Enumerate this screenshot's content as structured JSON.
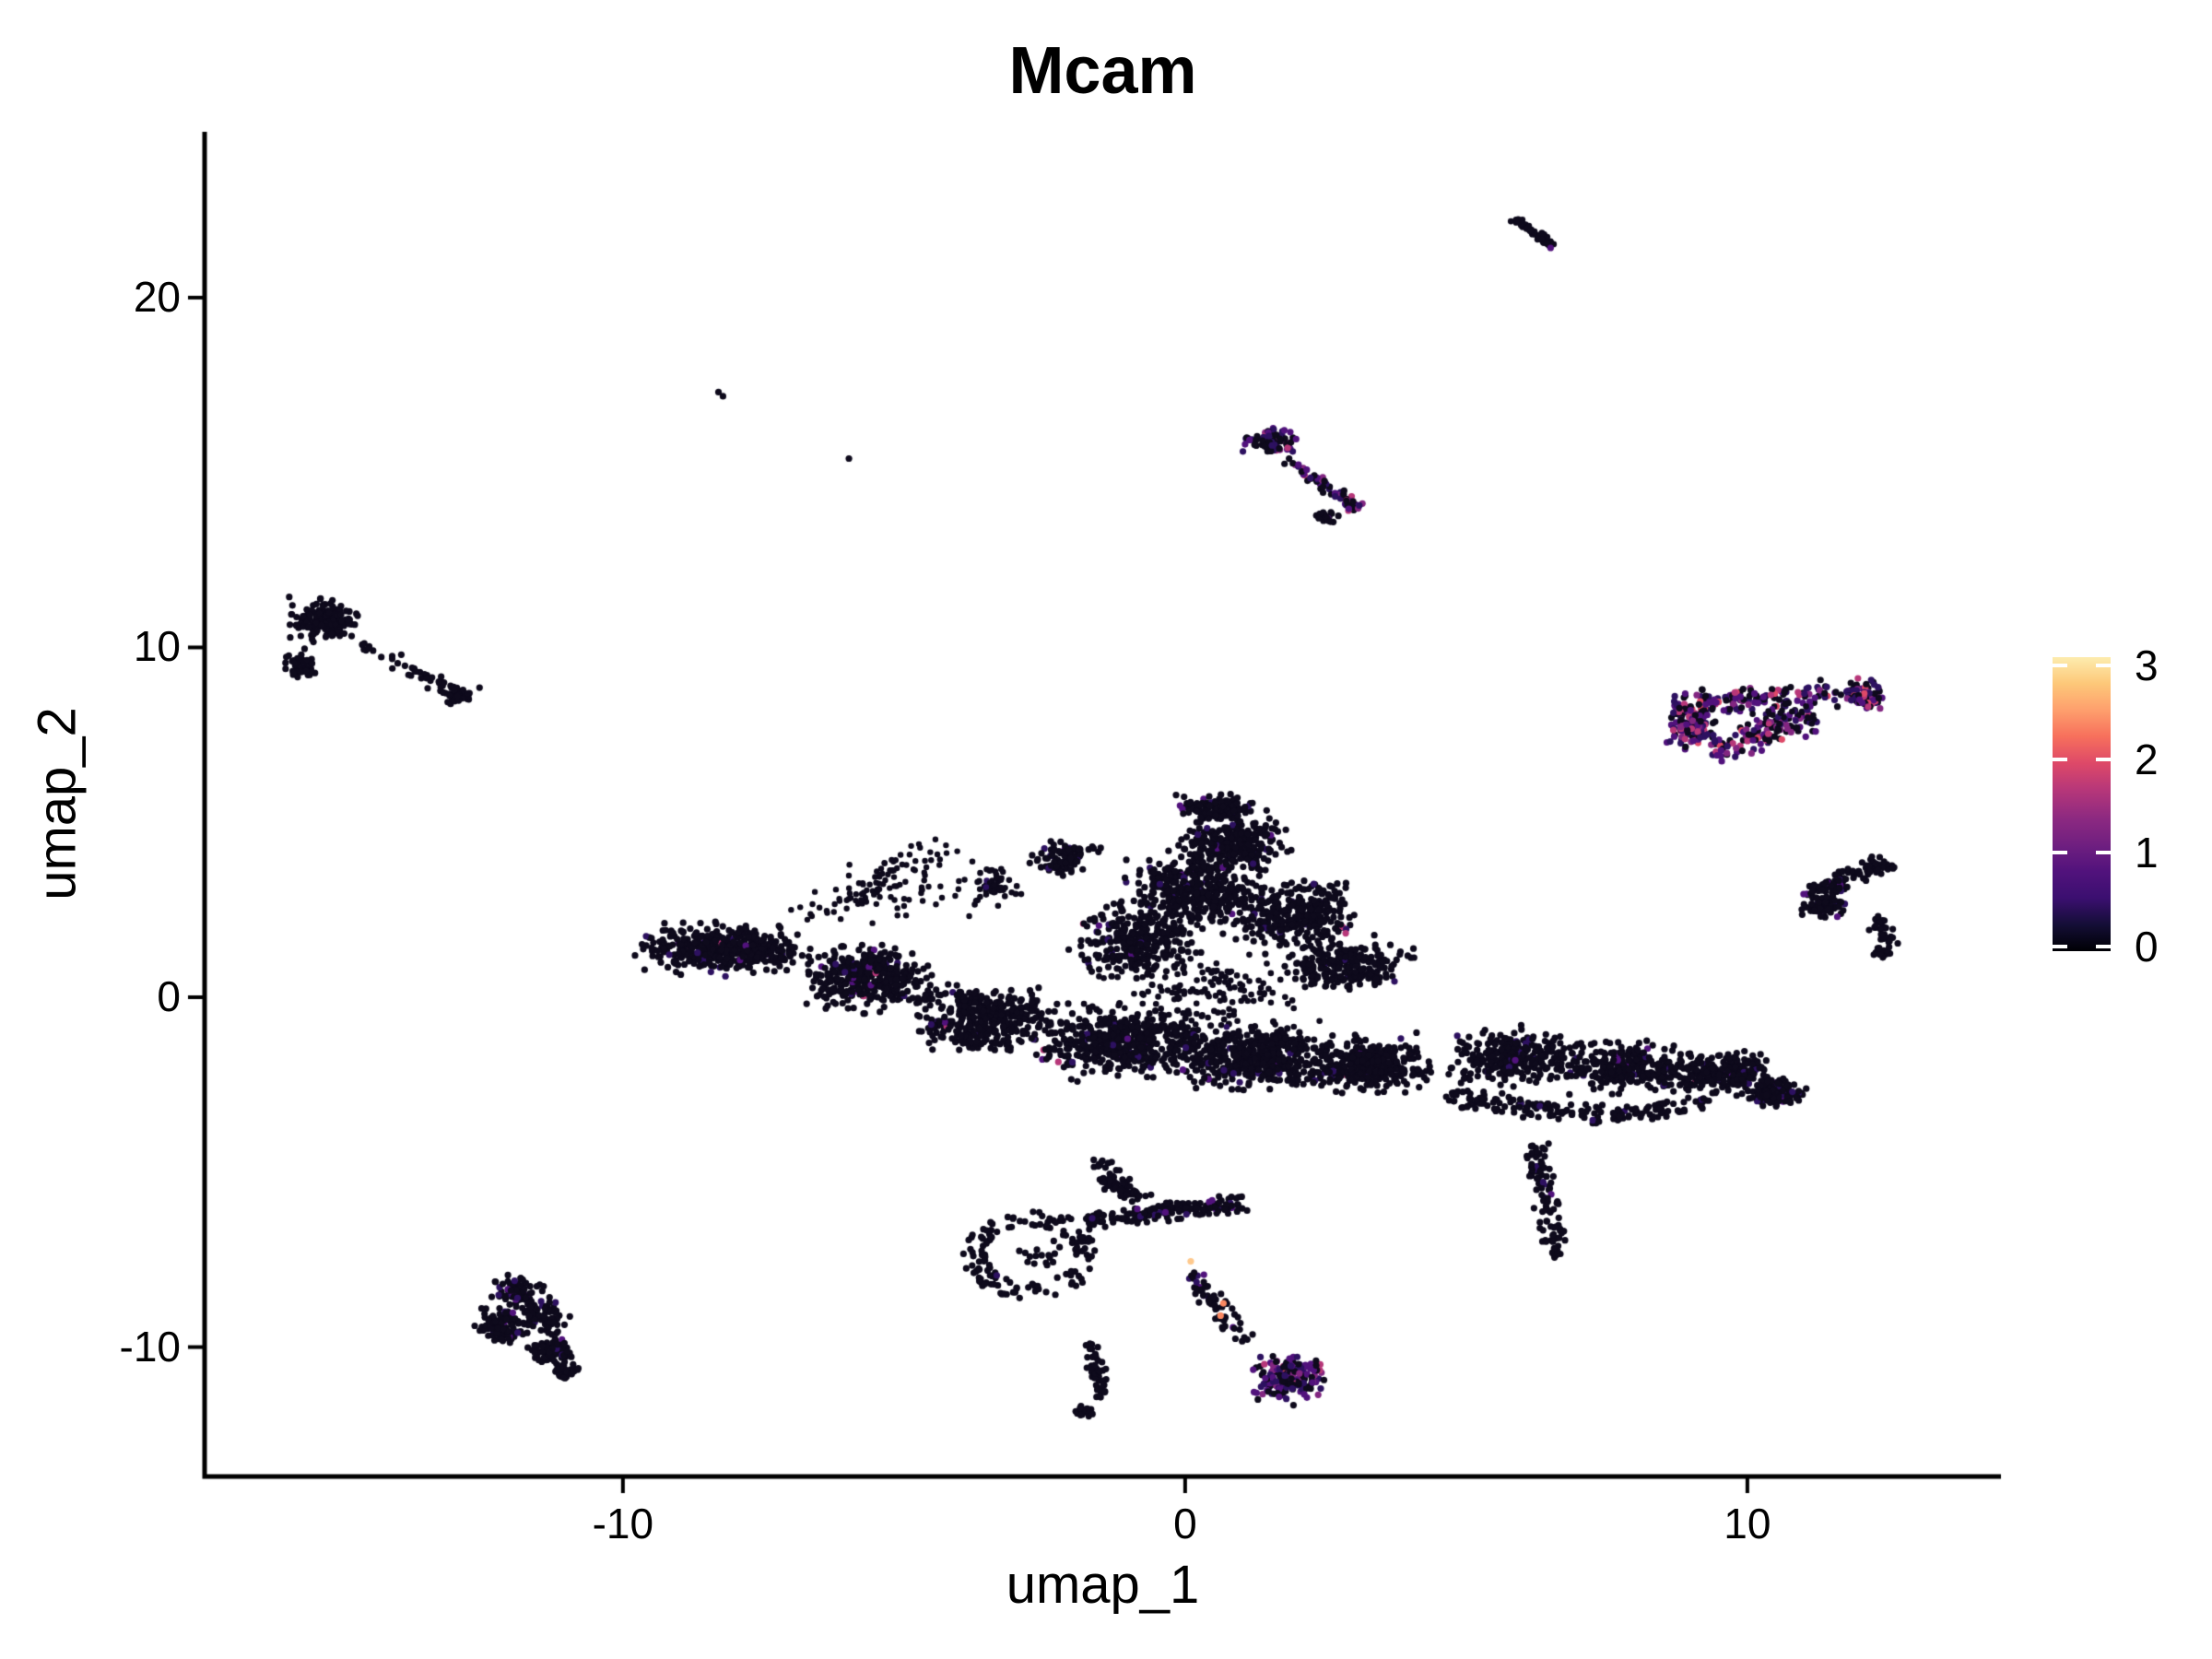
{
  "chart_data": {
    "type": "scatter",
    "title": "Mcam",
    "xlabel": "umap_1",
    "ylabel": "umap_2",
    "grid": false,
    "background": "#ffffff",
    "axis_color": "#000000",
    "xlim": [
      -17.44,
      14.51
    ],
    "ylim": [
      -13.7,
      24.74
    ],
    "x_ticks": [
      {
        "label": "-10",
        "value": -10
      },
      {
        "label": "0",
        "value": 0
      },
      {
        "label": "10",
        "value": 10
      }
    ],
    "y_ticks": [
      {
        "label": "20",
        "value": 20
      },
      {
        "label": "10",
        "value": 10
      },
      {
        "label": "0",
        "value": 0
      },
      {
        "label": "-10",
        "value": -10
      }
    ],
    "legend": {
      "position": "right",
      "range": [
        0,
        3
      ],
      "ticks": [
        {
          "label": "3",
          "value": 3
        },
        {
          "label": "2",
          "value": 2
        },
        {
          "label": "1",
          "value": 1
        },
        {
          "label": "0",
          "value": 0
        }
      ],
      "gradient_stops": [
        "#000004",
        "#140e36",
        "#3b0f70",
        "#51127c",
        "#6f1f80",
        "#8c2981",
        "#b73779",
        "#de4968",
        "#f7705c",
        "#fe9f6d",
        "#fdc879",
        "#fdecae"
      ]
    },
    "point_palette": [
      "#0e0a1c",
      "#2d1160",
      "#51127c",
      "#822681",
      "#b73779",
      "#de4968",
      "#fb8861",
      "#fec98d"
    ],
    "mixes": {
      "pureblack": [
        [
          0,
          1
        ]
      ],
      "black": [
        [
          0,
          958
        ],
        [
          1,
          28
        ],
        [
          2,
          10
        ],
        [
          4,
          4
        ]
      ],
      "blackp": [
        [
          0,
          92
        ],
        [
          1,
          5
        ],
        [
          2,
          3
        ]
      ],
      "tri": [
        [
          0,
          38
        ],
        [
          1,
          20
        ],
        [
          2,
          20
        ],
        [
          3,
          12
        ],
        [
          4,
          7
        ],
        [
          5,
          3
        ]
      ],
      "hot": [
        [
          0,
          45
        ],
        [
          1,
          22
        ],
        [
          2,
          18
        ],
        [
          3,
          8
        ],
        [
          4,
          5
        ],
        [
          5,
          2
        ]
      ]
    },
    "clusters": [
      {
        "type": "blob",
        "cx": -8.2,
        "cy": 1.4,
        "rx": 1.85,
        "ry": 0.9,
        "n": 480,
        "mix": "black"
      },
      {
        "type": "blob",
        "cx": -5.7,
        "cy": 0.55,
        "rx": 1.6,
        "ry": 1.25,
        "n": 380,
        "mix": "black"
      },
      {
        "type": "blob",
        "cx": -3.5,
        "cy": -0.6,
        "rx": 1.6,
        "ry": 1.2,
        "n": 400,
        "mix": "black"
      },
      {
        "type": "blob",
        "cx": -1.2,
        "cy": -1.3,
        "rx": 1.9,
        "ry": 1.25,
        "n": 480,
        "mix": "black"
      },
      {
        "type": "blob",
        "cx": 1.2,
        "cy": -1.7,
        "rx": 1.9,
        "ry": 1.15,
        "n": 480,
        "mix": "black"
      },
      {
        "type": "blob",
        "cx": 3.3,
        "cy": -1.9,
        "rx": 1.5,
        "ry": 1.0,
        "n": 340,
        "mix": "black"
      },
      {
        "type": "blob",
        "cx": 0.2,
        "cy": 3.1,
        "rx": 1.5,
        "ry": 1.5,
        "n": 400,
        "mix": "black"
      },
      {
        "type": "blob",
        "cx": 0.9,
        "cy": 4.4,
        "rx": 1.15,
        "ry": 0.95,
        "n": 260,
        "mix": "black"
      },
      {
        "type": "blob",
        "cx": 0.6,
        "cy": 5.4,
        "rx": 0.95,
        "ry": 0.5,
        "n": 130,
        "mix": "black"
      },
      {
        "type": "blob",
        "cx": -0.8,
        "cy": 1.6,
        "rx": 1.4,
        "ry": 1.3,
        "n": 300,
        "mix": "black"
      },
      {
        "type": "blob",
        "cx": 1.9,
        "cy": 2.4,
        "rx": 1.5,
        "ry": 1.3,
        "n": 320,
        "mix": "black"
      },
      {
        "type": "blob",
        "cx": 2.9,
        "cy": 0.9,
        "rx": 1.4,
        "ry": 1.0,
        "n": 240,
        "mix": "black"
      },
      {
        "type": "blob",
        "cx": 0.3,
        "cy": 0.2,
        "rx": 2.6,
        "ry": 1.6,
        "n": 150,
        "mix": "black",
        "r": 3.3
      },
      {
        "type": "blob",
        "cx": -2.2,
        "cy": 4.0,
        "rx": 0.8,
        "ry": 0.8,
        "n": 90,
        "mix": "black"
      },
      {
        "type": "blob",
        "cx": -3.4,
        "cy": 3.2,
        "rx": 0.7,
        "ry": 0.8,
        "n": 50,
        "mix": "black",
        "r": 3.3
      },
      {
        "type": "blob",
        "cx": -5.3,
        "cy": 3.0,
        "rx": 2.0,
        "ry": 1.3,
        "n": 70,
        "mix": "pureblack",
        "r": 3.2
      },
      {
        "type": "blob",
        "cx": 5.9,
        "cy": -1.7,
        "rx": 1.5,
        "ry": 1.0,
        "n": 280,
        "mix": "black"
      },
      {
        "type": "blob",
        "cx": 7.9,
        "cy": -2.0,
        "rx": 1.5,
        "ry": 0.9,
        "n": 280,
        "mix": "black"
      },
      {
        "type": "blob",
        "cx": 9.6,
        "cy": -2.2,
        "rx": 1.35,
        "ry": 0.8,
        "n": 260,
        "mix": "black"
      },
      {
        "type": "blob",
        "cx": 10.5,
        "cy": -2.7,
        "rx": 0.6,
        "ry": 0.5,
        "n": 140,
        "mix": "blackp"
      },
      {
        "type": "band",
        "x1": 4.6,
        "y1": -2.8,
        "x2": 7.4,
        "y2": -3.4,
        "w": 0.35,
        "n": 110,
        "mix": "black"
      },
      {
        "type": "band",
        "x1": 7.6,
        "y1": -3.4,
        "x2": 9.4,
        "y2": -3.0,
        "w": 0.3,
        "n": 70,
        "mix": "black"
      },
      {
        "type": "band",
        "x1": 6.25,
        "y1": -4.2,
        "x2": 6.55,
        "y2": -7.0,
        "w": 0.28,
        "n": 90,
        "mix": "blackp"
      },
      {
        "type": "blob",
        "cx": 6.55,
        "cy": -7.3,
        "rx": 0.2,
        "ry": 0.25,
        "n": 14,
        "mix": "pureblack"
      },
      {
        "type": "band",
        "x1": -6.8,
        "y1": 2.2,
        "x2": -4.2,
        "y2": 4.4,
        "w": 0.5,
        "n": 50,
        "mix": "pureblack",
        "r": 3.2
      },
      {
        "type": "band",
        "x1": -1.6,
        "y1": -4.6,
        "x2": -0.95,
        "y2": -5.6,
        "w": 0.25,
        "n": 30,
        "mix": "pureblack"
      },
      {
        "type": "ring",
        "cx": -2.75,
        "cy": -7.35,
        "rx": 1.0,
        "ry": 1.05,
        "th": 0.22,
        "n": 140,
        "mix": "pureblack"
      },
      {
        "type": "blob",
        "cx": -2.6,
        "cy": -7.3,
        "rx": 0.6,
        "ry": 0.55,
        "n": 16,
        "mix": "pureblack"
      },
      {
        "type": "band",
        "x1": -1.75,
        "y1": -6.45,
        "x2": 1.05,
        "y2": -5.85,
        "w": 0.3,
        "n": 150,
        "mix": "blackp"
      },
      {
        "type": "band",
        "x1": -1.55,
        "y1": -5.25,
        "x2": -0.7,
        "y2": -5.8,
        "w": 0.22,
        "n": 40,
        "mix": "pureblack"
      },
      {
        "type": "band",
        "x1": 0.05,
        "y1": -7.9,
        "x2": 1.1,
        "y2": -9.8,
        "w": 0.25,
        "n": 60,
        "mix": "blackp"
      },
      {
        "type": "blob",
        "cx": 1.85,
        "cy": -10.9,
        "rx": 0.85,
        "ry": 0.9,
        "n": 170,
        "mix": "hot"
      },
      {
        "type": "band",
        "x1": -1.65,
        "y1": -9.9,
        "x2": -1.5,
        "y2": -11.5,
        "w": 0.2,
        "n": 45,
        "mix": "pureblack"
      },
      {
        "type": "blob",
        "cx": -1.8,
        "cy": -11.85,
        "rx": 0.22,
        "ry": 0.3,
        "n": 22,
        "mix": "pureblack"
      },
      {
        "type": "blob",
        "cx": -11.9,
        "cy": -8.4,
        "rx": 0.6,
        "ry": 0.55,
        "n": 90,
        "mix": "blackp"
      },
      {
        "type": "blob",
        "cx": -12.15,
        "cy": -9.4,
        "rx": 0.55,
        "ry": 0.65,
        "n": 110,
        "mix": "blackp"
      },
      {
        "type": "blob",
        "cx": -11.45,
        "cy": -9.1,
        "rx": 0.55,
        "ry": 0.6,
        "n": 90,
        "mix": "blackp"
      },
      {
        "type": "blob",
        "cx": -11.25,
        "cy": -10.1,
        "rx": 0.5,
        "ry": 0.55,
        "n": 85,
        "mix": "blackp"
      },
      {
        "type": "blob",
        "cx": -11.0,
        "cy": -10.7,
        "rx": 0.3,
        "ry": 0.3,
        "n": 25,
        "mix": "pureblack"
      },
      {
        "type": "blob",
        "cx": -15.35,
        "cy": 10.75,
        "rx": 0.78,
        "ry": 0.75,
        "n": 170,
        "mix": "pureblack"
      },
      {
        "type": "blob",
        "cx": -15.75,
        "cy": 9.5,
        "rx": 0.38,
        "ry": 0.62,
        "n": 55,
        "mix": "pureblack"
      },
      {
        "type": "band",
        "x1": -14.7,
        "y1": 10.1,
        "x2": -13.0,
        "y2": 8.7,
        "w": 0.28,
        "n": 40,
        "mix": "pureblack"
      },
      {
        "type": "blob",
        "cx": -12.95,
        "cy": 8.6,
        "rx": 0.35,
        "ry": 0.35,
        "n": 40,
        "mix": "pureblack"
      },
      {
        "type": "band",
        "x1": 5.82,
        "y1": 22.25,
        "x2": 6.55,
        "y2": 21.5,
        "w": 0.12,
        "n": 55,
        "mix": "pureblack",
        "r": 3.4
      },
      {
        "type": "blob",
        "cx": 1.5,
        "cy": 15.9,
        "rx": 0.62,
        "ry": 0.45,
        "n": 80,
        "mix": "hot"
      },
      {
        "type": "band",
        "x1": 1.7,
        "y1": 15.5,
        "x2": 2.9,
        "y2": 14.2,
        "w": 0.18,
        "n": 45,
        "mix": "hot"
      },
      {
        "type": "blob",
        "cx": 2.95,
        "cy": 14.1,
        "rx": 0.3,
        "ry": 0.28,
        "n": 26,
        "mix": "hot"
      },
      {
        "type": "blob",
        "cx": 2.5,
        "cy": 13.75,
        "rx": 0.28,
        "ry": 0.3,
        "n": 22,
        "mix": "blackp"
      },
      {
        "type": "band",
        "x1": 8.7,
        "y1": 8.35,
        "x2": 12.35,
        "y2": 8.8,
        "w": 0.42,
        "n": 190,
        "mix": "tri"
      },
      {
        "type": "blob",
        "cx": 9.0,
        "cy": 7.75,
        "rx": 0.55,
        "ry": 0.75,
        "n": 130,
        "mix": "tri"
      },
      {
        "type": "band",
        "x1": 9.3,
        "y1": 7.05,
        "x2": 11.2,
        "y2": 8.0,
        "w": 0.45,
        "n": 110,
        "mix": "tri"
      },
      {
        "type": "blob",
        "cx": 12.1,
        "cy": 8.5,
        "rx": 0.4,
        "ry": 0.38,
        "n": 45,
        "mix": "tri"
      },
      {
        "type": "blob",
        "cx": 10.6,
        "cy": 8.0,
        "rx": 0.8,
        "ry": 0.5,
        "n": 40,
        "mix": "tri",
        "r": 3.3
      },
      {
        "type": "band",
        "x1": 12.55,
        "y1": 3.9,
        "x2": 11.05,
        "y2": 2.95,
        "w": 0.3,
        "n": 100,
        "mix": "blackp"
      },
      {
        "type": "blob",
        "cx": 11.35,
        "cy": 2.6,
        "rx": 0.5,
        "ry": 0.4,
        "n": 80,
        "mix": "blackp"
      },
      {
        "type": "band",
        "x1": 12.2,
        "y1": 2.25,
        "x2": 12.55,
        "y2": 1.6,
        "w": 0.2,
        "n": 28,
        "mix": "pureblack"
      },
      {
        "type": "band",
        "x1": 12.55,
        "y1": 1.6,
        "x2": 12.35,
        "y2": 1.15,
        "w": 0.2,
        "n": 20,
        "mix": "pureblack"
      },
      {
        "type": "dots",
        "pts": [
          [
            6.5,
            21.42,
            2
          ],
          [
            -12.55,
            8.85,
            0
          ],
          [
            -8.3,
            17.3,
            0
          ],
          [
            -8.22,
            17.18,
            0
          ],
          [
            -5.98,
            15.4,
            0
          ],
          [
            0.1,
            -7.55,
            7
          ],
          [
            0.68,
            -8.75,
            6
          ],
          [
            0.63,
            -9.1,
            6
          ],
          [
            -0.85,
            -6.05,
            2
          ],
          [
            -0.35,
            -6.15,
            2
          ],
          [
            -3.35,
            -7.95,
            1
          ],
          [
            11.0,
            2.95,
            2
          ],
          [
            11.6,
            2.3,
            2
          ]
        ]
      }
    ]
  }
}
